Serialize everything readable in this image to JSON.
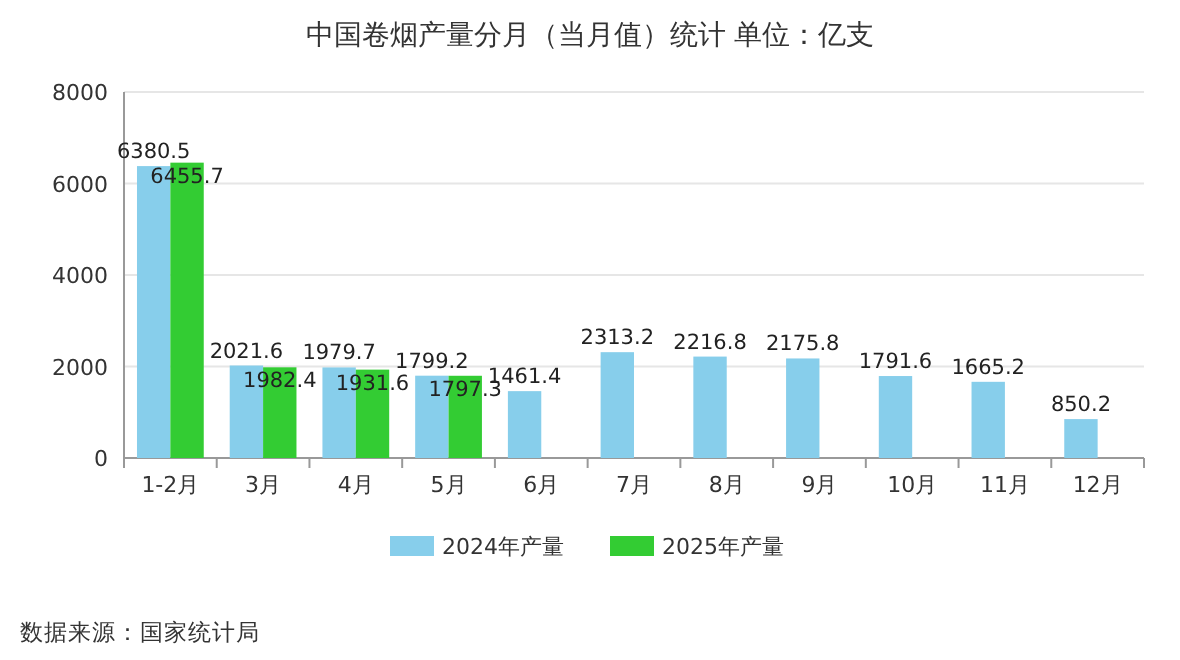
{
  "chart_data": {
    "type": "bar",
    "title": "中国卷烟产量分月（当月值）统计  单位：亿支",
    "categories": [
      "1-2月",
      "3月",
      "4月",
      "5月",
      "6月",
      "7月",
      "8月",
      "9月",
      "10月",
      "11月",
      "12月"
    ],
    "series": [
      {
        "name": "2024年产量",
        "color": "#87ceeb",
        "values": [
          6380.5,
          2021.6,
          1979.7,
          1799.2,
          1461.4,
          2313.2,
          2216.8,
          2175.8,
          1791.6,
          1665.2,
          850.2
        ]
      },
      {
        "name": "2025年产量",
        "color": "#33cc33",
        "values": [
          6455.7,
          1982.4,
          1931.6,
          1797.3,
          null,
          null,
          null,
          null,
          null,
          null,
          null
        ]
      }
    ],
    "ylim": [
      0,
      8000
    ],
    "yticks": [
      0,
      2000,
      4000,
      6000,
      8000
    ],
    "grid": "y",
    "legend": "bottom",
    "data_labels": true,
    "annotations": [
      "数据来源：国家统计局"
    ]
  }
}
